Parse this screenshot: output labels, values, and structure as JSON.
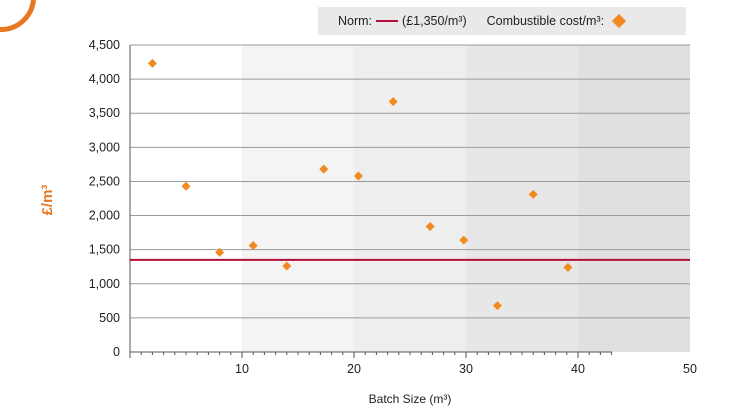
{
  "legend": {
    "norm_prefix": "Norm:",
    "norm_label": "(£1,350/m³)",
    "series_label": "Combustible cost/m³:"
  },
  "colors": {
    "accent": "#e87722",
    "marker": "#f28a22",
    "norm_line": "#b0103a",
    "background_bands": [
      "#ffffff",
      "#f4f4f4",
      "#eeeeee",
      "#e7e7e7",
      "#e0e0e0"
    ]
  },
  "chart_data": {
    "type": "scatter",
    "title": "",
    "xlabel": "Batch Size (m³)",
    "ylabel": "£/m³",
    "xlim": [
      0,
      50
    ],
    "ylim": [
      0,
      4500
    ],
    "x_ticks": [
      10,
      20,
      30,
      40,
      50
    ],
    "x_tick_labels": [
      "10",
      "20",
      "30",
      "40",
      "50"
    ],
    "y_ticks": [
      0,
      500,
      1000,
      1500,
      2000,
      2500,
      3000,
      3500,
      4000,
      4500
    ],
    "y_tick_labels": [
      "0",
      "500",
      "1,000",
      "1,500",
      "2,000",
      "2,500",
      "3,000",
      "3,500",
      "4,000",
      "4,500"
    ],
    "grid": true,
    "legend_position": "top-right",
    "reference_line": {
      "name": "Norm",
      "y": 1350
    },
    "series": [
      {
        "name": "Combustible cost/m³",
        "points": [
          {
            "x": 2,
            "y": 4230
          },
          {
            "x": 5,
            "y": 2430
          },
          {
            "x": 8,
            "y": 1460
          },
          {
            "x": 11,
            "y": 1560
          },
          {
            "x": 14,
            "y": 1260
          },
          {
            "x": 17.3,
            "y": 2680
          },
          {
            "x": 20.4,
            "y": 2580
          },
          {
            "x": 23.5,
            "y": 3670
          },
          {
            "x": 26.8,
            "y": 1840
          },
          {
            "x": 29.8,
            "y": 1640
          },
          {
            "x": 32.8,
            "y": 680
          },
          {
            "x": 36,
            "y": 2310
          },
          {
            "x": 39.1,
            "y": 1240
          }
        ]
      }
    ]
  }
}
